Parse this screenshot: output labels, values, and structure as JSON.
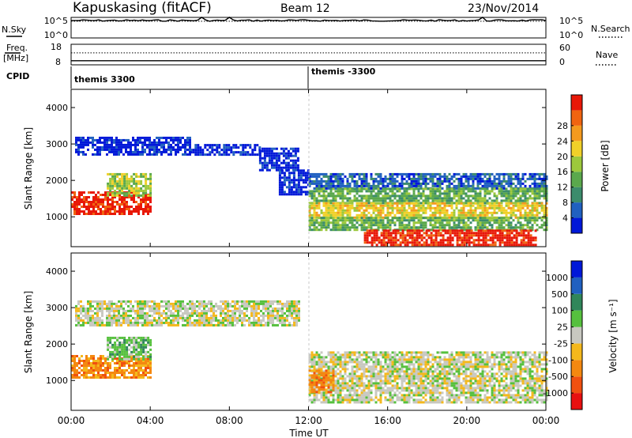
{
  "header": {
    "station_mode": "Kapuskasing (fitACF)",
    "beam": "Beam 12",
    "date": "23/Nov/2014"
  },
  "left_labels": {
    "nsky": "N.Sky",
    "freq": "Freq.",
    "freq_unit": "[MHz]",
    "cpid": "CPID"
  },
  "right_labels": {
    "nsearch": "N.Search",
    "nave": "Nave"
  },
  "cpid_segments": [
    "themis 3300",
    "themis -3300"
  ],
  "colors": {
    "power_scale": [
      "#0018d8",
      "#2060c0",
      "#3c8c6c",
      "#5aa84c",
      "#9cc83c",
      "#f0d028",
      "#f49a1e",
      "#f06410",
      "#e81808"
    ],
    "velocity_scale": [
      "#0018d8",
      "#2060c0",
      "#30865a",
      "#56c03e",
      "#c8c8c0",
      "#f4b81c",
      "#f48810",
      "#f05010",
      "#e81010"
    ]
  },
  "chart_data": [
    {
      "type": "line",
      "panel": "noise",
      "y_left_ticks": [
        "10^5",
        "10^0"
      ],
      "y_right_ticks": [
        "10^5",
        "10^0"
      ],
      "series": [
        {
          "name": "N.Sky",
          "style": "solid",
          "level_fraction": 0.85
        },
        {
          "name": "N.Search",
          "style": "dotted",
          "level_fraction": 0.85
        }
      ]
    },
    {
      "type": "line",
      "panel": "frequency",
      "y_left_ticks": [
        "18",
        "8"
      ],
      "y_right_ticks": [
        "60",
        "0"
      ],
      "series": [
        {
          "name": "Freq.",
          "style": "solid",
          "value": 10.0
        },
        {
          "name": "Nave",
          "style": "dotted",
          "value": 35
        }
      ]
    },
    {
      "type": "heatmap",
      "panel": "power",
      "ylabel": "Slant Range [km]",
      "ylim": [
        180,
        4500
      ],
      "y_ticks": [
        1000,
        2000,
        3000,
        4000
      ],
      "colorbar_label": "Power [dB]",
      "colorbar_ticks": [
        "4",
        "8",
        "12",
        "16",
        "20",
        "24",
        "28"
      ],
      "regions": [
        {
          "t0": 0.0,
          "t1": 4.0,
          "r0": 1050,
          "r1": 1700,
          "level": 8
        },
        {
          "t0": 1.8,
          "t1": 4.0,
          "r0": 1600,
          "r1": 2200,
          "level": 4
        },
        {
          "t0": 0.2,
          "t1": 6.0,
          "r0": 2700,
          "r1": 3200,
          "level": 0
        },
        {
          "t0": 6.0,
          "t1": 9.5,
          "r0": 2700,
          "r1": 3000,
          "level": 0
        },
        {
          "t0": 9.5,
          "t1": 11.5,
          "r0": 2300,
          "r1": 2900,
          "level": 0
        },
        {
          "t0": 10.5,
          "t1": 12.0,
          "r0": 1600,
          "r1": 2300,
          "level": 0
        },
        {
          "t0": 12.0,
          "t1": 24.0,
          "r0": 1800,
          "r1": 2200,
          "level": 1
        },
        {
          "t0": 12.0,
          "t1": 24.0,
          "r0": 1400,
          "r1": 1800,
          "level": 3
        },
        {
          "t0": 12.0,
          "t1": 24.0,
          "r0": 1000,
          "r1": 1400,
          "level": 5
        },
        {
          "t0": 12.0,
          "t1": 24.0,
          "r0": 650,
          "r1": 1000,
          "level": 3
        },
        {
          "t0": 14.8,
          "t1": 23.5,
          "r0": 200,
          "r1": 650,
          "level": 8
        }
      ]
    },
    {
      "type": "heatmap",
      "panel": "velocity",
      "ylabel": "Slant Range [km]",
      "ylim": [
        180,
        4500
      ],
      "y_ticks": [
        1000,
        2000,
        3000,
        4000
      ],
      "colorbar_label": "Velocity [m s⁻¹]",
      "colorbar_ticks": [
        "-1000",
        "-500",
        "-100",
        "-25",
        "25",
        "100",
        "500",
        "1000"
      ],
      "xlabel": "Time UT",
      "x_ticks": [
        "00:00",
        "04:00",
        "08:00",
        "12:00",
        "16:00",
        "20:00",
        "00:00"
      ],
      "xlim": [
        0,
        24
      ],
      "regions": [
        {
          "t0": 0.0,
          "t1": 4.0,
          "r0": 1050,
          "r1": 1700,
          "level": 6
        },
        {
          "t0": 1.8,
          "t1": 4.0,
          "r0": 1600,
          "r1": 2200,
          "level": 3
        },
        {
          "t0": 0.2,
          "t1": 11.5,
          "r0": 2500,
          "r1": 3200,
          "level": 4
        },
        {
          "t0": 12.0,
          "t1": 24.0,
          "r0": 400,
          "r1": 1800,
          "level": 4
        },
        {
          "t0": 12.0,
          "t1": 13.2,
          "r0": 700,
          "r1": 1300,
          "level": 6
        }
      ]
    }
  ]
}
